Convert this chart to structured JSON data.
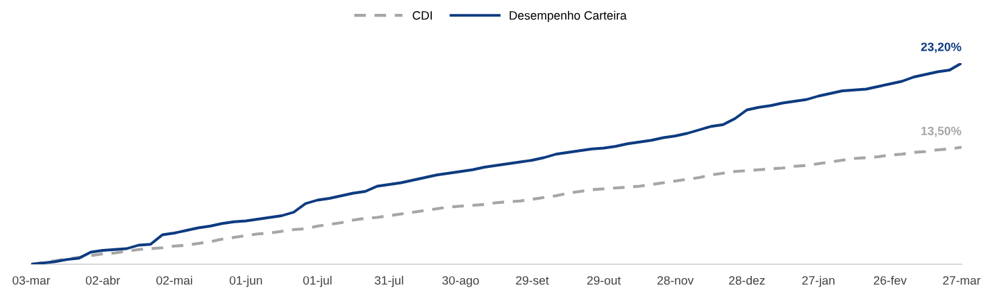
{
  "chart_data": {
    "type": "line",
    "categories": [
      "03-mar",
      null,
      null,
      null,
      null,
      null,
      "02-abr",
      null,
      null,
      null,
      null,
      null,
      "02-mai",
      null,
      null,
      null,
      null,
      null,
      "01-jun",
      null,
      null,
      null,
      null,
      null,
      "01-jul",
      null,
      null,
      null,
      null,
      null,
      "31-jul",
      null,
      null,
      null,
      null,
      null,
      "30-ago",
      null,
      null,
      null,
      null,
      null,
      "29-set",
      null,
      null,
      null,
      null,
      null,
      "29-out",
      null,
      null,
      null,
      null,
      null,
      "28-nov",
      null,
      null,
      null,
      null,
      null,
      "28-dez",
      null,
      null,
      null,
      null,
      null,
      "27-jan",
      null,
      null,
      null,
      null,
      null,
      "26-fev",
      null,
      null,
      null,
      null,
      null,
      "27-mar"
    ],
    "tick_labels": "x",
    "legend": "top",
    "series": [
      {
        "name": "CDI",
        "color": "#a6a6a6",
        "line_style": "dashed",
        "values": [
          0,
          0.2,
          0.4,
          0.6,
          0.8,
          1.0,
          1.2,
          1.3,
          1.5,
          1.7,
          1.8,
          1.9,
          2.1,
          2.2,
          2.4,
          2.6,
          2.9,
          3.1,
          3.3,
          3.5,
          3.6,
          3.8,
          4.0,
          4.1,
          4.4,
          4.6,
          4.8,
          5.1,
          5.3,
          5.4,
          5.6,
          5.8,
          6.0,
          6.2,
          6.4,
          6.6,
          6.7,
          6.8,
          6.9,
          7.1,
          7.2,
          7.3,
          7.5,
          7.7,
          7.9,
          8.2,
          8.4,
          8.6,
          8.7,
          8.8,
          8.9,
          9.0,
          9.2,
          9.4,
          9.6,
          9.8,
          10.0,
          10.3,
          10.5,
          10.7,
          10.8,
          10.9,
          11.0,
          11.1,
          11.3,
          11.4,
          11.6,
          11.8,
          12.0,
          12.2,
          12.3,
          12.4,
          12.6,
          12.7,
          12.9,
          13.0,
          13.2,
          13.3,
          13.5
        ],
        "value_labels": [
          null,
          null,
          null,
          null,
          null,
          null,
          null,
          null,
          null,
          null,
          null,
          null,
          null,
          null,
          null,
          null,
          null,
          null,
          null,
          null,
          null,
          null,
          null,
          null,
          null,
          null,
          null,
          null,
          null,
          null,
          null,
          null,
          null,
          null,
          null,
          null,
          null,
          null,
          null,
          null,
          null,
          null,
          null,
          null,
          null,
          null,
          null,
          null,
          null,
          null,
          null,
          null,
          null,
          null,
          null,
          null,
          null,
          null,
          null,
          null,
          null,
          null,
          null,
          null,
          null,
          null,
          null,
          null,
          null,
          null,
          null,
          null,
          null,
          null,
          null,
          null,
          null,
          null,
          "13,50%"
        ]
      },
      {
        "name": "Desempenho Carteira",
        "color": "#0d3b80",
        "line_style": "solid",
        "values": [
          0,
          0.15,
          0.3,
          0.55,
          0.7,
          1.4,
          1.6,
          1.7,
          1.8,
          2.2,
          2.3,
          3.4,
          3.6,
          3.9,
          4.2,
          4.4,
          4.7,
          4.9,
          5.0,
          5.2,
          5.4,
          5.6,
          6.0,
          7.0,
          7.4,
          7.6,
          7.9,
          8.2,
          8.4,
          9.0,
          9.2,
          9.4,
          9.7,
          10.0,
          10.3,
          10.5,
          10.7,
          10.9,
          11.2,
          11.4,
          11.6,
          11.8,
          12.0,
          12.3,
          12.7,
          12.9,
          13.1,
          13.3,
          13.4,
          13.6,
          13.9,
          14.1,
          14.3,
          14.6,
          14.8,
          15.1,
          15.5,
          15.9,
          16.1,
          16.8,
          17.8,
          18.1,
          18.3,
          18.6,
          18.8,
          19.0,
          19.4,
          19.7,
          20.0,
          20.1,
          20.2,
          20.5,
          20.8,
          21.1,
          21.6,
          21.9,
          22.2,
          22.4,
          23.2
        ],
        "value_labels": [
          null,
          null,
          null,
          null,
          null,
          null,
          null,
          null,
          null,
          null,
          null,
          null,
          null,
          null,
          null,
          null,
          null,
          null,
          null,
          null,
          null,
          null,
          null,
          null,
          null,
          null,
          null,
          null,
          null,
          null,
          null,
          null,
          null,
          null,
          null,
          null,
          null,
          null,
          null,
          null,
          null,
          null,
          null,
          null,
          null,
          null,
          null,
          null,
          null,
          null,
          null,
          null,
          null,
          null,
          null,
          null,
          null,
          null,
          null,
          null,
          null,
          null,
          null,
          null,
          null,
          null,
          null,
          null,
          null,
          null,
          null,
          null,
          null,
          null,
          null,
          null,
          null,
          null,
          "23,20%"
        ]
      }
    ]
  }
}
